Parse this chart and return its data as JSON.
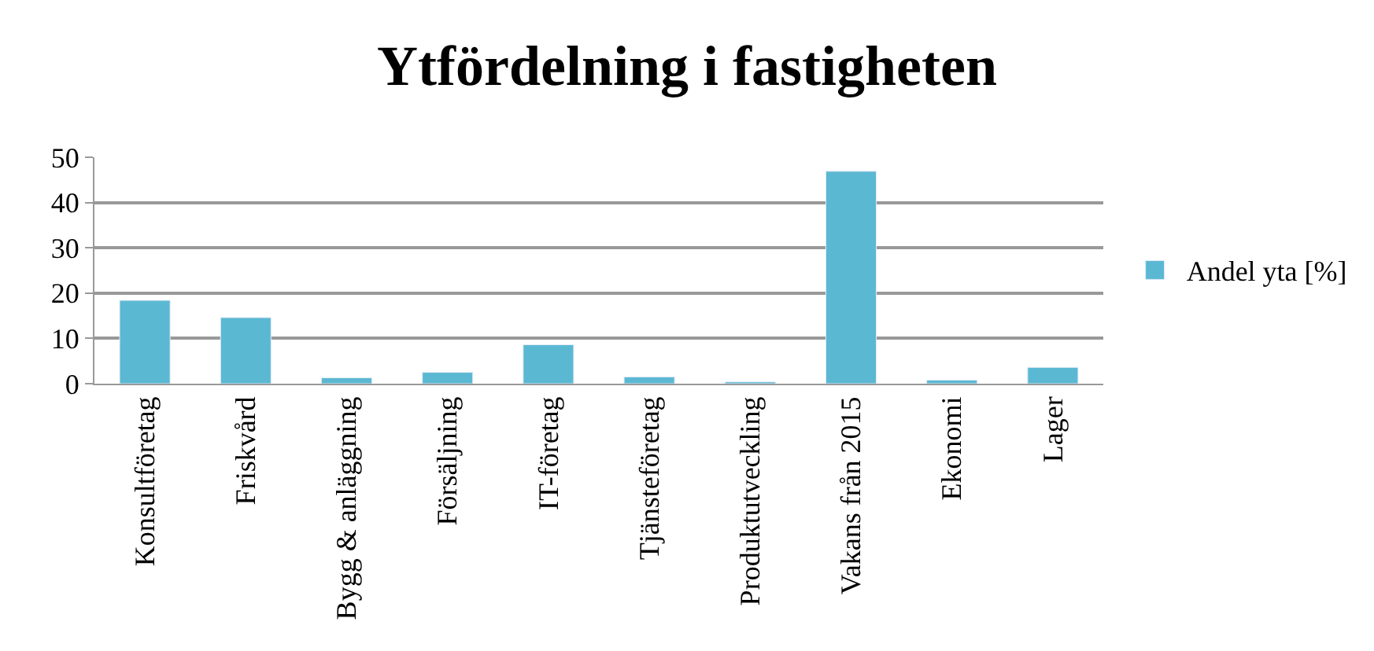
{
  "chart_data": {
    "type": "bar",
    "title": "Ytfördelning i fastigheten",
    "categories": [
      "Konsultföretag",
      "Friskvård",
      "Bygg & anläggning",
      "Försäljning",
      "IT-företag",
      "Tjänsteföretag",
      "Produktutveckling",
      "Vakans från 2015",
      "Ekonomi",
      "Lager"
    ],
    "series": [
      {
        "name": "Andel yta [%]",
        "color": "#5bb8d3",
        "values": [
          18.4,
          14.6,
          1.3,
          2.5,
          8.6,
          1.5,
          0.4,
          46.9,
          0.8,
          3.6
        ]
      }
    ],
    "ylim": [
      0,
      50
    ],
    "yticks": [
      0,
      10,
      20,
      30,
      40,
      50
    ],
    "grid": "y",
    "legend": "right"
  }
}
